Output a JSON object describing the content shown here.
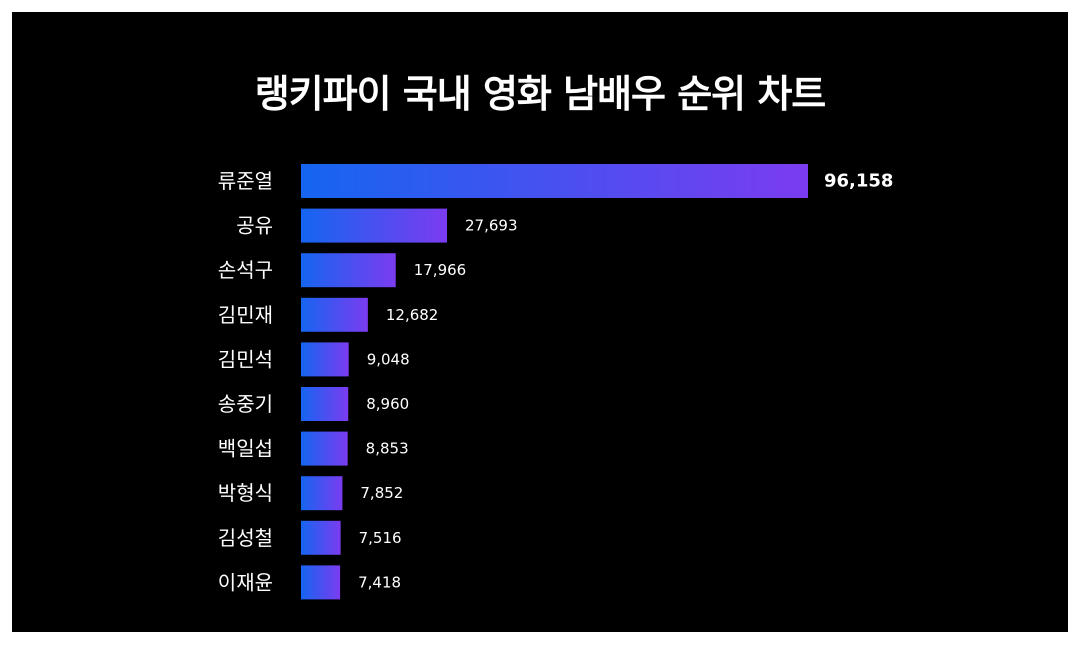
{
  "chart_data": {
    "type": "bar",
    "orientation": "horizontal",
    "title": "랭키파이 국내 영화 남배우 순위 차트",
    "categories": [
      "류준열",
      "공유",
      "손석구",
      "김민재",
      "김민석",
      "송중기",
      "백일섭",
      "박형식",
      "김성철",
      "이재윤"
    ],
    "values": [
      96158,
      27693,
      17966,
      12682,
      9048,
      8960,
      8853,
      7852,
      7516,
      7418
    ],
    "value_labels": [
      "96,158",
      "27,693",
      "17,966",
      "12,682",
      "9,048",
      "8,960",
      "8,853",
      "7,852",
      "7,516",
      "7,418"
    ],
    "xlabel": "",
    "ylabel": "",
    "grid": false,
    "legend": "none",
    "colors": {
      "background": "#000000",
      "bar_start": "#1565f0",
      "bar_end": "#7b3cf0",
      "text": "#ffffff"
    }
  }
}
